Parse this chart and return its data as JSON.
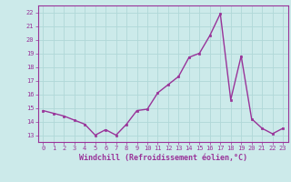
{
  "x": [
    0,
    1,
    2,
    3,
    4,
    5,
    6,
    7,
    8,
    9,
    10,
    11,
    12,
    13,
    14,
    15,
    16,
    17,
    18,
    19,
    20,
    21,
    22,
    23
  ],
  "y": [
    14.8,
    14.6,
    14.4,
    14.1,
    13.8,
    13.0,
    13.4,
    13.0,
    13.8,
    14.8,
    14.9,
    16.1,
    16.7,
    17.3,
    18.7,
    19.0,
    20.3,
    21.9,
    15.6,
    18.8,
    14.2,
    13.5,
    13.1,
    13.5
  ],
  "line_color": "#993399",
  "marker": "s",
  "marker_size": 2.0,
  "bg_color": "#cceaea",
  "grid_color": "#b0d8d8",
  "xlabel": "Windchill (Refroidissement éolien,°C)",
  "xlim": [
    -0.5,
    23.5
  ],
  "ylim": [
    12.5,
    22.5
  ],
  "yticks": [
    13,
    14,
    15,
    16,
    17,
    18,
    19,
    20,
    21,
    22
  ],
  "xticks": [
    0,
    1,
    2,
    3,
    4,
    5,
    6,
    7,
    8,
    9,
    10,
    11,
    12,
    13,
    14,
    15,
    16,
    17,
    18,
    19,
    20,
    21,
    22,
    23
  ],
  "tick_fontsize": 5.0,
  "label_fontsize": 6.0,
  "line_width": 1.0
}
